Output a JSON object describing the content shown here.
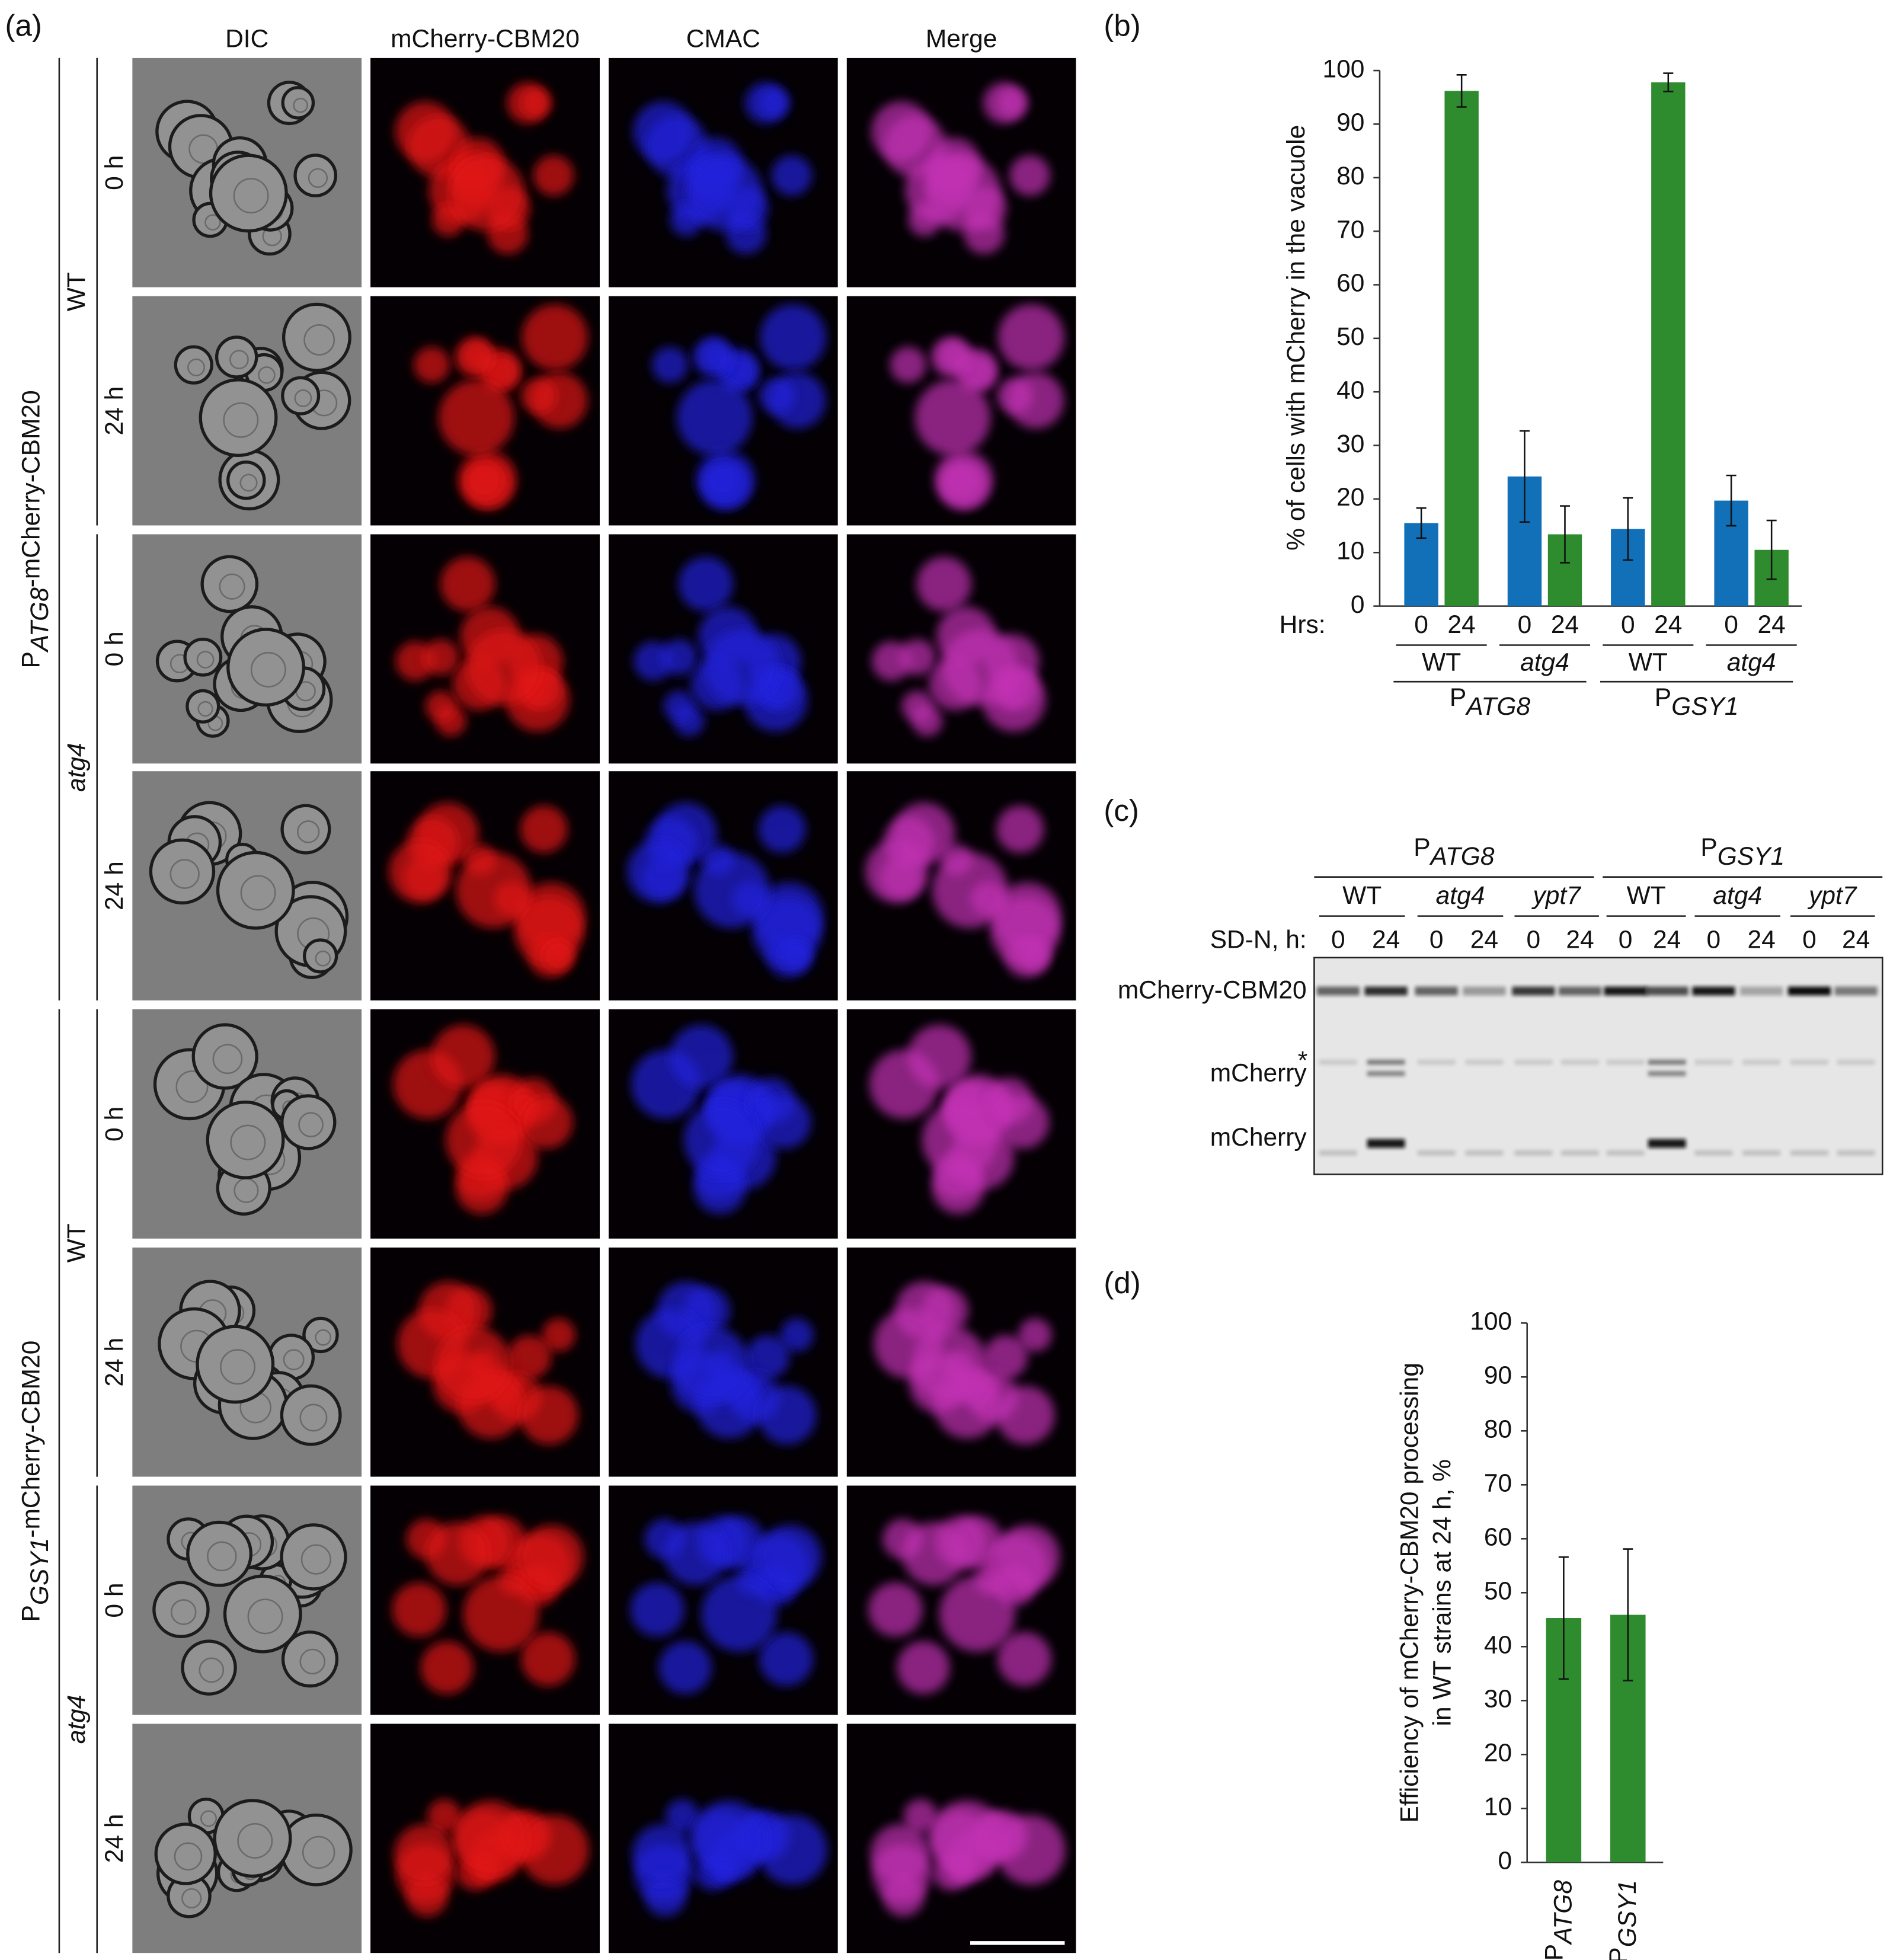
{
  "panel_labels": [
    "(a)",
    "(b)",
    "(c)",
    "(d)"
  ],
  "microscopy": {
    "columns": [
      "DIC",
      "mCherry-CBM20",
      "CMAC",
      "Merge"
    ],
    "constructs": [
      {
        "prefix": "P",
        "sub": "ATG8",
        "rest": "-mCherry-CBM20"
      },
      {
        "prefix": "P",
        "sub": "GSY1",
        "rest": "-mCherry-CBM20"
      }
    ],
    "strains": [
      "WT",
      "atg4",
      "WT",
      "atg4"
    ],
    "times": [
      "0 h",
      "24 h"
    ]
  },
  "chart_data": [
    {
      "type": "bar",
      "ylabel": "% of cells with mCherry in the vacuole",
      "x_prefix": "Hrs:",
      "categories": [
        "0",
        "24",
        "0",
        "24",
        "0",
        "24",
        "0",
        "24"
      ],
      "values": [
        15.5,
        96.2,
        24.2,
        13.4,
        14.4,
        97.8,
        19.7,
        10.5
      ],
      "errors": [
        2.8,
        3.0,
        8.5,
        5.3,
        5.8,
        1.7,
        4.7,
        5.5
      ],
      "colors": [
        "#1170b8",
        "#2e8b2e",
        "#1170b8",
        "#2e8b2e",
        "#1170b8",
        "#2e8b2e",
        "#1170b8",
        "#2e8b2e"
      ],
      "ylim": [
        0,
        100
      ],
      "yticks": [
        0,
        10,
        20,
        30,
        40,
        50,
        60,
        70,
        80,
        90,
        100
      ],
      "strain_groups": [
        "WT",
        "atg4",
        "WT",
        "atg4"
      ],
      "promoter_groups": [
        {
          "prefix": "P",
          "sub": "ATG8"
        },
        {
          "prefix": "P",
          "sub": "GSY1"
        }
      ]
    },
    {
      "type": "bar",
      "ylabel": [
        "Efficiency of mCherry-CBM20 processing",
        "in WT strains at 24 h, %"
      ],
      "categories": [
        {
          "prefix": "P",
          "sub": "ATG8"
        },
        {
          "prefix": "P",
          "sub": "GSY1"
        }
      ],
      "values": [
        45.3,
        45.9
      ],
      "errors": [
        11.3,
        12.2
      ],
      "color": "#2e8b2e",
      "ylim": [
        0,
        100
      ],
      "yticks": [
        0,
        10,
        20,
        30,
        40,
        50,
        60,
        70,
        80,
        90,
        100
      ]
    }
  ],
  "blot": {
    "promoters": [
      {
        "prefix": "P",
        "sub": "ATG8"
      },
      {
        "prefix": "P",
        "sub": "GSY1"
      }
    ],
    "strains": [
      "WT",
      "atg4",
      "ypt7",
      "WT",
      "atg4",
      "ypt7"
    ],
    "lane_prefix": "SD-N, h:",
    "lanes": [
      "0",
      "24",
      "0",
      "24",
      "0",
      "24",
      "0",
      "24",
      "0",
      "24",
      "0",
      "24"
    ],
    "bands": [
      "mCherry-CBM20",
      "mCherry",
      "mCherry"
    ],
    "asterisk": "*"
  }
}
